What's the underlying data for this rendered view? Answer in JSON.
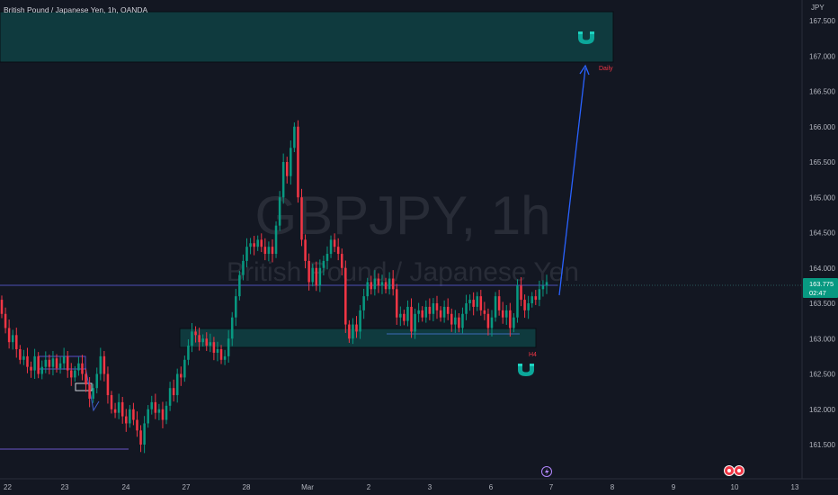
{
  "header": {
    "title": "British Pound / Japanese Yen, 1h, OANDA"
  },
  "watermark": {
    "symbol": "GBPJPY, 1h",
    "name": "British Pound / Japanese Yen"
  },
  "price_axis": {
    "currency": "JPY",
    "ticks": [
      "167.500",
      "167.000",
      "166.500",
      "166.000",
      "165.500",
      "165.000",
      "164.500",
      "164.000",
      "163.500",
      "163.000",
      "162.500",
      "162.000",
      "161.500"
    ]
  },
  "time_axis": {
    "ticks": [
      "22",
      "23",
      "24",
      "27",
      "28",
      "Mar",
      "2",
      "3",
      "6",
      "7",
      "8",
      "9",
      "10",
      "13"
    ]
  },
  "last_price": {
    "value": "163.775",
    "countdown": "02:47"
  },
  "annotations": {
    "daily_label": "Daily",
    "h4_label": "H4"
  },
  "colors": {
    "background": "#131722",
    "up": "#089981",
    "down": "#f23645",
    "zone_fill": "#0f3a3e",
    "arrow": "#2962ff",
    "magnet": "#0ca79a",
    "price_tag": "#089981"
  },
  "icons": {
    "magnet_top": "magnet-icon",
    "magnet_bottom": "magnet-icon",
    "lightning": "lightning-icon",
    "events": "economic-events-icon"
  },
  "chart_data": {
    "type": "candlestick",
    "title": "British Pound / Japanese Yen, 1h, OANDA",
    "x_ticks": [
      "22",
      "23",
      "24",
      "27",
      "28",
      "Mar",
      "2",
      "3",
      "6",
      "7",
      "8",
      "9",
      "10",
      "13"
    ],
    "y_ticks": [
      167.5,
      167.0,
      166.5,
      166.0,
      165.5,
      165.0,
      164.5,
      164.0,
      163.5,
      163.0,
      162.5,
      162.0,
      161.5
    ],
    "ylim": [
      161.2,
      167.9
    ],
    "last_price": 163.775,
    "candles": [
      [
        163.55,
        163.35
      ],
      [
        163.35,
        163.15
      ],
      [
        163.15,
        162.95
      ],
      [
        162.95,
        163.05
      ],
      [
        163.05,
        162.85
      ],
      [
        162.85,
        162.7
      ],
      [
        162.7,
        162.75
      ],
      [
        162.75,
        162.6
      ],
      [
        162.6,
        162.55
      ],
      [
        162.55,
        162.75
      ],
      [
        162.75,
        162.5
      ],
      [
        162.5,
        162.6
      ],
      [
        162.6,
        162.7
      ],
      [
        162.7,
        162.6
      ],
      [
        162.6,
        162.72
      ],
      [
        162.72,
        162.58
      ],
      [
        162.58,
        162.65
      ],
      [
        162.65,
        162.75
      ],
      [
        162.75,
        162.55
      ],
      [
        162.55,
        162.45
      ],
      [
        162.45,
        162.55
      ],
      [
        162.55,
        162.65
      ],
      [
        162.65,
        162.5
      ],
      [
        162.5,
        162.35
      ],
      [
        162.35,
        162.15
      ],
      [
        162.15,
        162.3
      ],
      [
        162.3,
        162.5
      ],
      [
        162.5,
        162.75
      ],
      [
        162.75,
        162.5
      ],
      [
        162.5,
        162.2
      ],
      [
        162.2,
        162.0
      ],
      [
        162.0,
        161.95
      ],
      [
        161.95,
        162.1
      ],
      [
        162.1,
        161.9
      ],
      [
        161.9,
        161.8
      ],
      [
        161.8,
        162.0
      ],
      [
        162.0,
        161.85
      ],
      [
        161.85,
        161.7
      ],
      [
        161.7,
        161.5
      ],
      [
        161.5,
        161.8
      ],
      [
        161.8,
        162.0
      ],
      [
        162.0,
        162.1
      ],
      [
        162.1,
        161.95
      ],
      [
        161.95,
        162.0
      ],
      [
        162.0,
        161.85
      ],
      [
        161.85,
        162.05
      ],
      [
        162.05,
        162.3
      ],
      [
        162.3,
        162.2
      ],
      [
        162.2,
        162.5
      ],
      [
        162.5,
        162.45
      ],
      [
        162.45,
        162.7
      ],
      [
        162.7,
        162.9
      ],
      [
        162.9,
        163.1
      ],
      [
        163.1,
        163.05
      ],
      [
        163.05,
        162.95
      ],
      [
        162.95,
        163.0
      ],
      [
        163.0,
        162.9
      ],
      [
        162.9,
        162.95
      ],
      [
        162.95,
        162.8
      ],
      [
        162.8,
        162.85
      ],
      [
        162.85,
        162.7
      ],
      [
        162.7,
        162.75
      ],
      [
        162.75,
        163.0
      ],
      [
        163.0,
        163.3
      ],
      [
        163.3,
        163.6
      ],
      [
        163.6,
        163.9
      ],
      [
        163.9,
        164.1
      ],
      [
        164.1,
        164.3
      ],
      [
        164.3,
        164.35
      ],
      [
        164.35,
        164.3
      ],
      [
        164.3,
        164.4
      ],
      [
        164.4,
        164.3
      ],
      [
        164.3,
        164.2
      ],
      [
        164.2,
        164.3
      ],
      [
        164.3,
        164.2
      ],
      [
        164.2,
        164.6
      ],
      [
        164.6,
        165.0
      ],
      [
        165.0,
        165.5
      ],
      [
        165.5,
        165.3
      ],
      [
        165.3,
        165.7
      ],
      [
        165.7,
        166.0
      ],
      [
        166.0,
        165.0
      ],
      [
        165.0,
        164.4
      ],
      [
        164.4,
        164.1
      ],
      [
        164.1,
        163.8
      ],
      [
        163.8,
        164.0
      ],
      [
        164.0,
        163.75
      ],
      [
        163.75,
        164.0
      ],
      [
        164.0,
        164.1
      ],
      [
        164.1,
        164.2
      ],
      [
        164.2,
        164.4
      ],
      [
        164.4,
        164.3
      ],
      [
        164.3,
        164.2
      ],
      [
        164.2,
        164.0
      ],
      [
        164.0,
        163.2
      ],
      [
        163.2,
        163.0
      ],
      [
        163.0,
        163.2
      ],
      [
        163.2,
        163.1
      ],
      [
        163.1,
        163.4
      ],
      [
        163.4,
        163.6
      ],
      [
        163.6,
        163.8
      ],
      [
        163.8,
        163.7
      ],
      [
        163.7,
        163.85
      ],
      [
        163.85,
        163.75
      ],
      [
        163.75,
        163.8
      ],
      [
        163.8,
        163.7
      ],
      [
        163.7,
        163.85
      ],
      [
        163.85,
        163.7
      ],
      [
        163.7,
        163.3
      ],
      [
        163.3,
        163.35
      ],
      [
        163.35,
        163.25
      ],
      [
        163.25,
        163.45
      ],
      [
        163.45,
        163.1
      ],
      [
        163.1,
        163.35
      ],
      [
        163.35,
        163.4
      ],
      [
        163.4,
        163.3
      ],
      [
        163.3,
        163.45
      ],
      [
        163.45,
        163.35
      ],
      [
        163.35,
        163.5
      ],
      [
        163.5,
        163.4
      ],
      [
        163.4,
        163.3
      ],
      [
        163.3,
        163.45
      ],
      [
        163.45,
        163.35
      ],
      [
        163.35,
        163.2
      ],
      [
        163.2,
        163.3
      ],
      [
        163.3,
        163.15
      ],
      [
        163.15,
        163.35
      ],
      [
        163.35,
        163.5
      ],
      [
        163.5,
        163.55
      ],
      [
        163.55,
        163.45
      ],
      [
        163.45,
        163.6
      ],
      [
        163.6,
        163.4
      ],
      [
        163.4,
        163.35
      ],
      [
        163.35,
        163.15
      ],
      [
        163.15,
        163.3
      ],
      [
        163.3,
        163.6
      ],
      [
        163.6,
        163.4
      ],
      [
        163.4,
        163.3
      ],
      [
        163.3,
        163.4
      ],
      [
        163.4,
        163.15
      ],
      [
        163.15,
        163.3
      ],
      [
        163.3,
        163.75
      ],
      [
        163.75,
        163.55
      ],
      [
        163.55,
        163.4
      ],
      [
        163.4,
        163.5
      ],
      [
        163.5,
        163.6
      ],
      [
        163.6,
        163.55
      ],
      [
        163.55,
        163.7
      ],
      [
        163.7,
        163.75
      ],
      [
        163.75,
        163.8
      ]
    ],
    "levels": [
      {
        "name": "daily-zone",
        "from": 166.95,
        "to": 167.65
      },
      {
        "name": "h4-zone",
        "from": 162.88,
        "to": 163.14
      },
      {
        "name": "price-line",
        "value": 163.775
      },
      {
        "name": "support-line",
        "value": 161.45
      }
    ],
    "projection": {
      "from": 163.7,
      "to": 166.95
    }
  }
}
